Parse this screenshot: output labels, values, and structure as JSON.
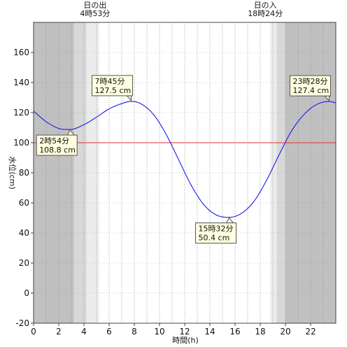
{
  "chart_data": {
    "type": "line",
    "xlabel": "時間(h)",
    "ylabel": "水位(cm)",
    "xlim": [
      0,
      24
    ],
    "ylim": [
      -20,
      180
    ],
    "x_ticks": [
      0,
      2,
      4,
      6,
      8,
      10,
      12,
      14,
      16,
      18,
      20,
      22
    ],
    "y_ticks": [
      -20,
      0,
      20,
      40,
      60,
      80,
      100,
      120,
      140,
      160
    ],
    "x_tick_labels": [
      "0",
      "2",
      "4",
      "6",
      "8",
      "10",
      "12",
      "14",
      "16",
      "18",
      "20",
      "22"
    ],
    "y_tick_labels": [
      "-20",
      "0",
      "20",
      "40",
      "60",
      "80",
      "100",
      "120",
      "140",
      "160"
    ],
    "x_grid": "dotted every hour",
    "reference_line": {
      "y": 100,
      "color": "#e03030"
    },
    "series": [
      {
        "color": "#1a1aee",
        "x": [
          0,
          1,
          2,
          2.9,
          4,
          5,
          6,
          7,
          7.75,
          8.5,
          9.5,
          10.5,
          11.5,
          12.5,
          13.5,
          14.5,
          15.53,
          16.5,
          17.5,
          18.5,
          19.5,
          20.5,
          21.5,
          22.5,
          23.47,
          24
        ],
        "y": [
          121,
          114,
          109.5,
          108.8,
          112,
          117,
          122.5,
          126,
          127.5,
          126,
          119,
          106,
          89,
          72,
          59,
          52,
          50.4,
          53,
          61,
          75,
          92,
          108,
          119,
          125.5,
          127.4,
          126.5
        ]
      }
    ],
    "night_bands": [
      {
        "from": 0,
        "to": 3.2,
        "color": "#c0c0c0"
      },
      {
        "from": 20,
        "to": 24,
        "color": "#c0c0c0"
      }
    ],
    "twilight_bands": [
      {
        "from": 3.2,
        "to": 4.2,
        "color": "#d8d8d8"
      },
      {
        "from": 4.2,
        "to": 5.2,
        "color": "#ececec"
      },
      {
        "from": 18.8,
        "to": 19.3,
        "color": "#ececec"
      },
      {
        "from": 19.3,
        "to": 20,
        "color": "#d8d8d8"
      }
    ],
    "sun_events": [
      {
        "x": 4.88,
        "name": "日の出",
        "time": "4時53分"
      },
      {
        "x": 18.4,
        "name": "日の入",
        "time": "18時24分"
      }
    ],
    "annotations": [
      {
        "x": 2.9,
        "y": 108.8,
        "time": "2時54分",
        "value": "108.8 cm",
        "position": "below-left"
      },
      {
        "x": 7.75,
        "y": 127.5,
        "time": "7時45分",
        "value": "127.5 cm",
        "position": "above-left"
      },
      {
        "x": 15.53,
        "y": 50.4,
        "time": "15時32分",
        "value": "50.4 cm",
        "position": "below-left"
      },
      {
        "x": 23.47,
        "y": 127.4,
        "time": "23時28分",
        "value": "127.4 cm",
        "position": "above-left"
      }
    ]
  }
}
